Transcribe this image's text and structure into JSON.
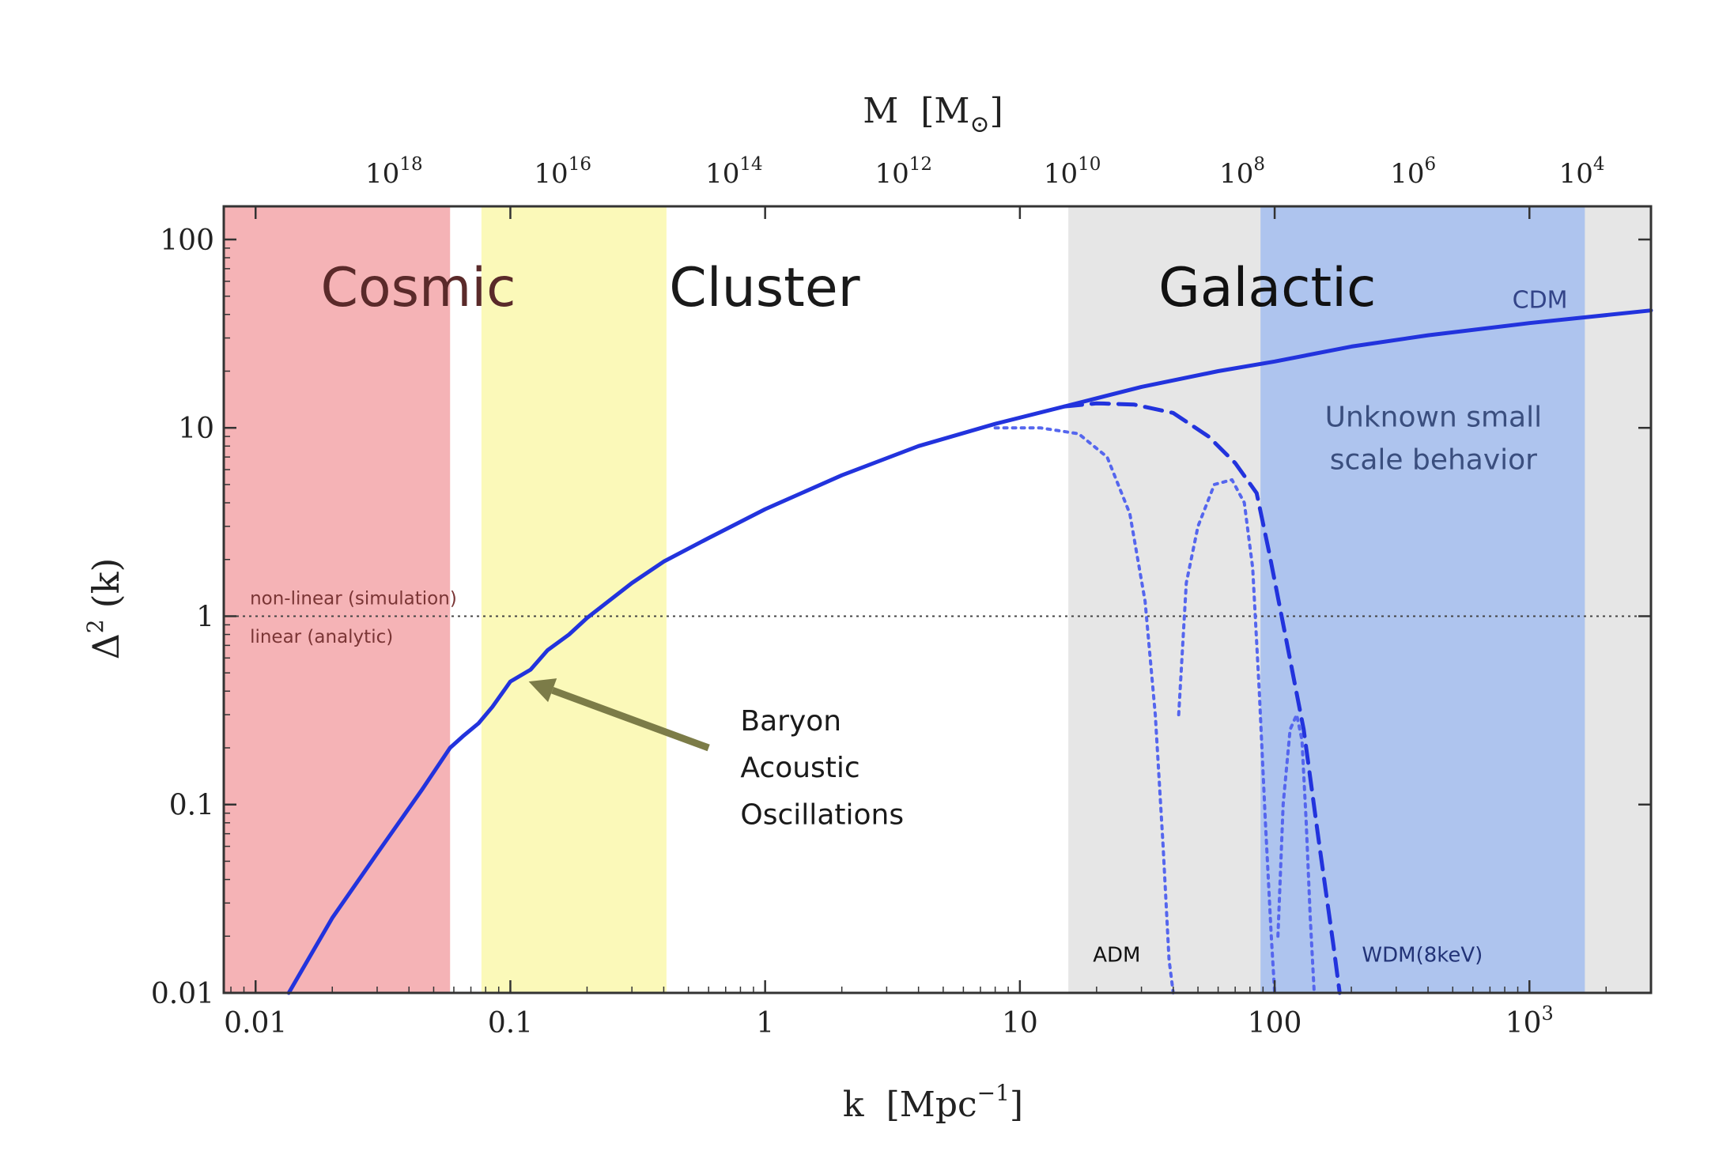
{
  "chart_data": {
    "type": "line",
    "xlabel_main": "k",
    "xlabel_unit": "[Mpc",
    "xlabel_exp": "−1",
    "xlabel_close": "]",
    "ylabel_main": "Δ",
    "ylabel_exp": "2",
    "ylabel_arg": "(k)",
    "top_label_main": "M",
    "top_label_unit_open": "[M",
    "top_label_sun": "⊙",
    "top_label_close": "]",
    "x_scale": "log",
    "y_scale": "log",
    "xlim": [
      0.0075,
      3000
    ],
    "ylim": [
      0.01,
      150
    ],
    "x_ticks": [
      {
        "value": 0.01,
        "label": "0.01",
        "base": "",
        "exp": ""
      },
      {
        "value": 0.1,
        "label": "0.1",
        "base": "",
        "exp": ""
      },
      {
        "value": 1,
        "label": "1",
        "base": "",
        "exp": ""
      },
      {
        "value": 10,
        "label": "10",
        "base": "",
        "exp": ""
      },
      {
        "value": 100,
        "label": "100",
        "base": "",
        "exp": ""
      },
      {
        "value": 1000,
        "label": "",
        "base": "10",
        "exp": "3"
      }
    ],
    "y_ticks": [
      {
        "value": 0.01,
        "label": "0.01"
      },
      {
        "value": 0.1,
        "label": "0.1"
      },
      {
        "value": 1,
        "label": "1"
      },
      {
        "value": 10,
        "label": "10"
      },
      {
        "value": 100,
        "label": "100"
      }
    ],
    "top_ticks": [
      {
        "k": 0.037,
        "base": "10",
        "exp": "18"
      },
      {
        "k": 0.17,
        "base": "10",
        "exp": "16"
      },
      {
        "k": 0.8,
        "base": "10",
        "exp": "14"
      },
      {
        "k": 3.7,
        "base": "10",
        "exp": "12"
      },
      {
        "k": 17,
        "base": "10",
        "exp": "10"
      },
      {
        "k": 79,
        "base": "10",
        "exp": "8"
      },
      {
        "k": 370,
        "base": "10",
        "exp": "6"
      },
      {
        "k": 1700,
        "base": "10",
        "exp": "4"
      }
    ],
    "regions": [
      {
        "label": "Cosmic",
        "k_start": 0.0075,
        "k_end": 0.058,
        "color": "#f5b3b6",
        "text_color": "#5a2a2a",
        "text_k": 0.018,
        "text_y": 55
      },
      {
        "label": "Cluster",
        "k_start": 0.077,
        "k_end": 0.41,
        "color": "#fbf9b9",
        "text_color": "#1a1a1a",
        "text_k": 0.42,
        "text_y": 55
      },
      {
        "label": "Galactic",
        "k_start": 15.5,
        "k_end": 3000,
        "color": "#e6e6e6",
        "text_color": "#111111",
        "text_k": 35,
        "text_y": 55
      },
      {
        "label": "",
        "k_start": 88,
        "k_end": 1650,
        "color": "#aec4ee",
        "text_color": "",
        "text_k": 0,
        "text_y": 0
      }
    ],
    "series": [
      {
        "name": "CDM",
        "style": "solid",
        "color": "#2233dd",
        "x": [
          0.0135,
          0.02,
          0.03,
          0.045,
          0.058,
          0.065,
          0.075,
          0.085,
          0.1,
          0.12,
          0.14,
          0.17,
          0.2,
          0.3,
          0.4,
          0.6,
          1,
          2,
          4,
          8,
          15,
          30,
          60,
          100,
          200,
          400,
          1000,
          3000
        ],
        "y": [
          0.01,
          0.025,
          0.055,
          0.12,
          0.2,
          0.23,
          0.27,
          0.33,
          0.45,
          0.52,
          0.66,
          0.8,
          0.98,
          1.5,
          1.95,
          2.6,
          3.7,
          5.6,
          8.0,
          10.5,
          13.0,
          16.5,
          20,
          22.5,
          27,
          31,
          36,
          42
        ]
      },
      {
        "name": "",
        "style": "dashed",
        "color": "#2233dd",
        "x": [
          15,
          20,
          28,
          40,
          55,
          70,
          85,
          95,
          110,
          130,
          150,
          170,
          180
        ],
        "y": [
          13,
          13.5,
          13.3,
          12,
          9,
          6.5,
          4.5,
          2.2,
          0.8,
          0.25,
          0.06,
          0.018,
          0.01
        ]
      },
      {
        "name": "",
        "style": "dotted",
        "color": "#5566ee",
        "x": [
          8,
          12,
          17,
          22,
          27,
          31,
          34,
          36.5,
          38.5,
          40
        ],
        "y": [
          10,
          10,
          9.3,
          7,
          3.5,
          1.2,
          0.3,
          0.06,
          0.015,
          0.01
        ]
      },
      {
        "name": "",
        "style": "dotted",
        "color": "#5566ee",
        "x": [
          42,
          45,
          50,
          58,
          68,
          76,
          82,
          87,
          92,
          97,
          100
        ],
        "y": [
          0.3,
          1.5,
          3.0,
          5.0,
          5.3,
          4.0,
          1.8,
          0.4,
          0.08,
          0.02,
          0.01
        ]
      },
      {
        "name": "",
        "style": "dotted",
        "color": "#5566ee",
        "x": [
          103,
          108,
          115,
          122,
          128,
          133,
          138,
          143
        ],
        "y": [
          0.02,
          0.1,
          0.25,
          0.3,
          0.22,
          0.08,
          0.025,
          0.01
        ]
      }
    ],
    "reference_line": {
      "y": 1,
      "style": "dotted",
      "color": "#444444"
    },
    "annotations": [
      {
        "text": "CDM",
        "k": 1100,
        "y": 48,
        "color": "#334488",
        "anchor": "middle",
        "size": 30
      },
      {
        "text": "Unknown small",
        "k": 420,
        "y": 11.5,
        "color": "#3a4e7e",
        "anchor": "middle",
        "size": 36
      },
      {
        "text": "scale behavior",
        "k": 420,
        "y": 6.8,
        "color": "#3a4e7e",
        "anchor": "middle",
        "size": 36
      },
      {
        "text": "non-linear (simulation)",
        "k": 0.0095,
        "y": 1.25,
        "color": "#7a3535",
        "anchor": "start",
        "size": 23
      },
      {
        "text": "linear (analytic)",
        "k": 0.0095,
        "y": 0.78,
        "color": "#7a3535",
        "anchor": "start",
        "size": 23
      },
      {
        "text": "ADM",
        "k": 24,
        "y": 0.016,
        "color": "#111111",
        "anchor": "middle",
        "size": 26
      },
      {
        "text": "WDM(8keV)",
        "k": 380,
        "y": 0.016,
        "color": "#223377",
        "anchor": "middle",
        "size": 26
      },
      {
        "text": "Baryon",
        "k": 0.8,
        "y": 0.28,
        "color": "#1a1a1a",
        "anchor": "start",
        "size": 36
      },
      {
        "text": "Acoustic",
        "k": 0.8,
        "y": 0.158,
        "color": "#1a1a1a",
        "anchor": "start",
        "size": 36
      },
      {
        "text": "Oscillations",
        "k": 0.8,
        "y": 0.089,
        "color": "#1a1a1a",
        "anchor": "start",
        "size": 36
      }
    ],
    "arrow": {
      "from_k": 0.6,
      "from_y": 0.2,
      "to_k": 0.118,
      "to_y": 0.45,
      "color": "#7c7c48"
    },
    "grid": false,
    "legend": "none"
  }
}
